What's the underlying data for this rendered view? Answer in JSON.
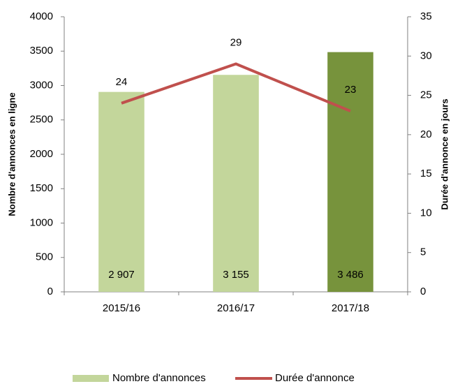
{
  "chart_data": {
    "type": "combo",
    "categories": [
      "2015/16",
      "2016/17",
      "2017/18"
    ],
    "series": [
      {
        "name": "Nombre d'annonces",
        "type": "bar",
        "color": "#c3d69b",
        "colors": [
          "#c3d69b",
          "#c3d69b",
          "#77933c"
        ],
        "values": [
          2907,
          3155,
          3486
        ],
        "value_labels": [
          "2 907",
          "3 155",
          "3 486"
        ]
      },
      {
        "name": "Durée d'annonce",
        "type": "line",
        "axis": "y2",
        "color": "#c0504d",
        "values": [
          24,
          29,
          23
        ]
      }
    ],
    "ylabel": "Nombre d'annonces en ligne",
    "y2label": "Durée d'annonce en jours",
    "ylim": [
      0,
      4000
    ],
    "yticks": [
      0,
      500,
      1000,
      1500,
      2000,
      2500,
      3000,
      3500,
      4000
    ],
    "y2lim": [
      0,
      35
    ],
    "y2ticks": [
      0,
      5,
      10,
      15,
      20,
      25,
      30,
      35
    ],
    "legend": "bottom"
  }
}
